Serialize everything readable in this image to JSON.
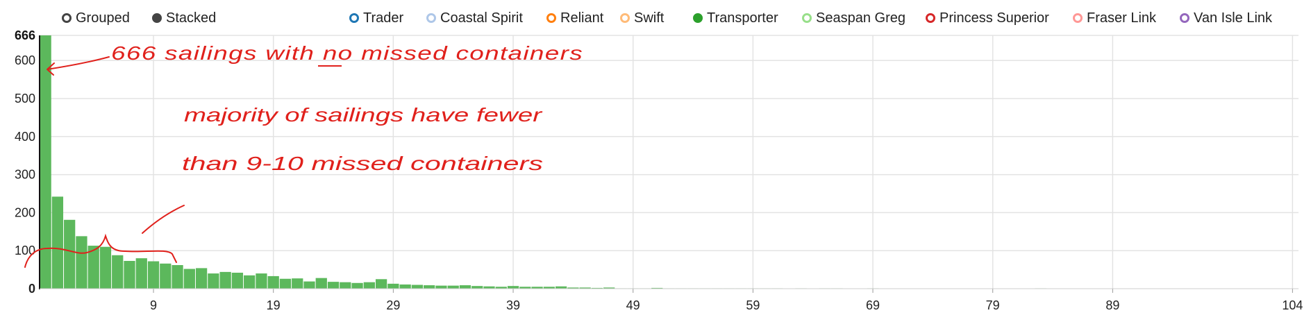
{
  "controls": {
    "mode_grouped": "Grouped",
    "mode_stacked": "Stacked",
    "selected_mode": "Stacked"
  },
  "legend": [
    {
      "name": "Trader",
      "color": "#1f77b4",
      "active": false
    },
    {
      "name": "Coastal Spirit",
      "color": "#aec7e8",
      "active": false
    },
    {
      "name": "Reliant",
      "color": "#ff7f0e",
      "active": false
    },
    {
      "name": "Swift",
      "color": "#ffbb78",
      "active": false
    },
    {
      "name": "Transporter",
      "color": "#2ca02c",
      "active": true
    },
    {
      "name": "Seaspan Greg",
      "color": "#98df8a",
      "active": false
    },
    {
      "name": "Princess Superior",
      "color": "#d62728",
      "active": false
    },
    {
      "name": "Fraser Link",
      "color": "#ff9896",
      "active": false
    },
    {
      "name": "Van Isle Link",
      "color": "#9467bd",
      "active": false
    }
  ],
  "chart_data": {
    "type": "bar",
    "stacked": true,
    "x_start": 0,
    "x_end": 104,
    "ylim": [
      0,
      666
    ],
    "y_max_label": "666",
    "y_ticks": [
      0,
      100,
      200,
      300,
      400,
      500,
      600
    ],
    "x_tick_labels": [
      9,
      19,
      29,
      39,
      49,
      59,
      69,
      79,
      89,
      104
    ],
    "grid": true,
    "series": [
      {
        "name": "Transporter",
        "color": "#5cb85c",
        "values": [
          666,
          242,
          181,
          138,
          113,
          110,
          88,
          73,
          80,
          72,
          66,
          62,
          52,
          54,
          40,
          44,
          42,
          35,
          40,
          33,
          26,
          27,
          19,
          28,
          18,
          17,
          15,
          17,
          25,
          13,
          11,
          10,
          9,
          8,
          8,
          9,
          7,
          6,
          5,
          7,
          5,
          5,
          5,
          6,
          3,
          3,
          2,
          3,
          1,
          1,
          1,
          2,
          1,
          1,
          1,
          1,
          1,
          1,
          1,
          1,
          1,
          1,
          0,
          1,
          0,
          1,
          1,
          0,
          0,
          1,
          0,
          0,
          0,
          0,
          0,
          0,
          0,
          0,
          0,
          0,
          0,
          0,
          0,
          1,
          0,
          0,
          0,
          0,
          0,
          0,
          0,
          0,
          0,
          0,
          0,
          0,
          0,
          0,
          0,
          0,
          0,
          0,
          0,
          0,
          0
        ]
      }
    ],
    "annotations": [
      {
        "text": "666 sailings with no missed containers",
        "color": "#e0201b"
      },
      {
        "text": "majority of sailings have fewer",
        "color": "#e0201b"
      },
      {
        "text": "than 9-10 missed containers",
        "color": "#e0201b"
      }
    ]
  }
}
